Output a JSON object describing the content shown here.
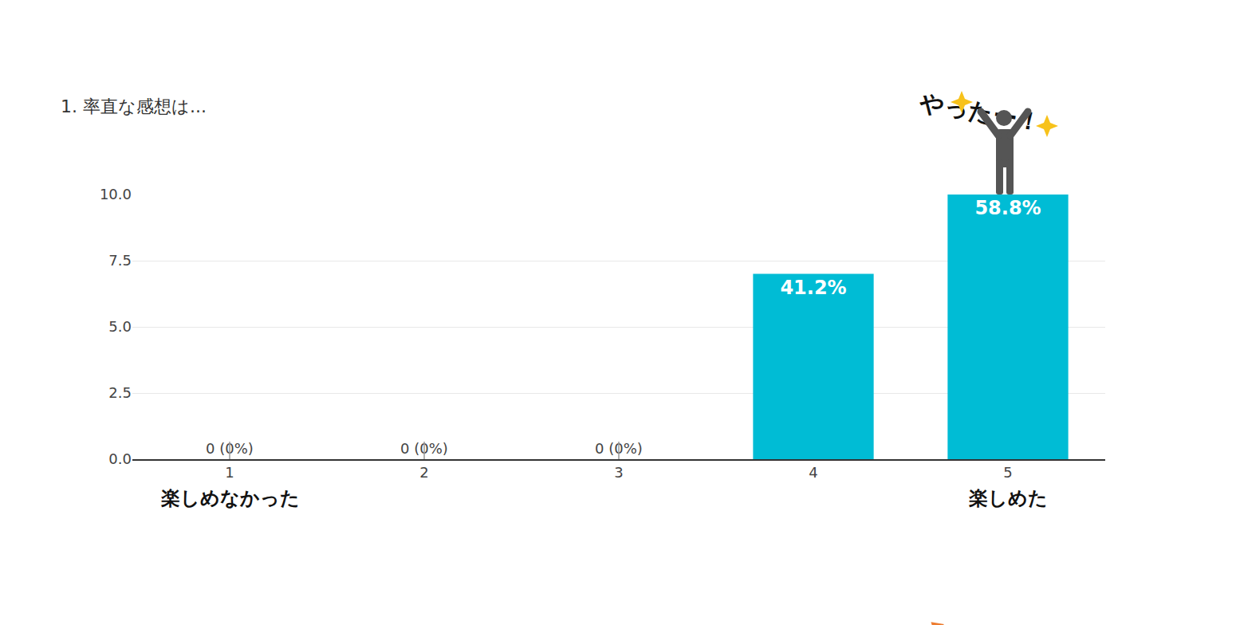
{
  "chart_data": {
    "type": "bar",
    "title": "1. 率直な感想は...",
    "categories": [
      "1",
      "2",
      "3",
      "4",
      "5"
    ],
    "values": [
      0,
      0,
      0,
      7,
      10
    ],
    "value_labels": [
      "0 (0%)",
      "0 (0%)",
      "0 (0%)",
      "41.2%",
      "58.8%"
    ],
    "color": "#00bcd5",
    "ylim": [
      0,
      10
    ],
    "yticks": [
      {
        "value": 0,
        "label": "0.0"
      },
      2.5,
      {
        "value": 5,
        "label": "5.0"
      },
      7.5,
      {
        "value": 10,
        "label": "10.0"
      }
    ],
    "grid": true,
    "data_labels": true,
    "scale_labels": {
      "low": "楽しめなかった",
      "high": "楽しめた"
    },
    "annotations": [
      "やったー！"
    ]
  }
}
